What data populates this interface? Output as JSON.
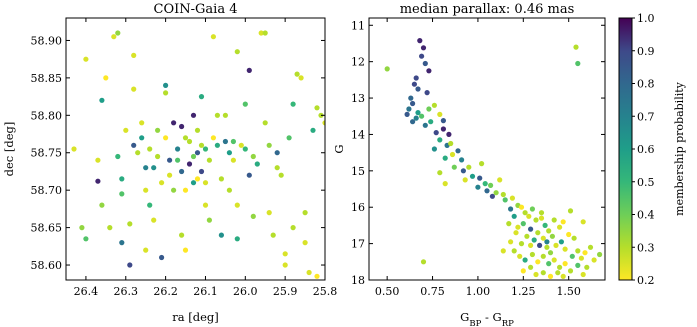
{
  "chart_data": [
    {
      "type": "scatter",
      "title": "COIN-Gaia 4",
      "xlabel": "ra [deg]",
      "ylabel": "dec [deg]",
      "xlim": [
        26.45,
        25.8
      ],
      "ylim": [
        58.58,
        58.93
      ],
      "x_inverted": true,
      "xticks": [
        26.4,
        26.3,
        26.2,
        26.1,
        26.0,
        25.9,
        25.8
      ],
      "xtick_labels": [
        "26.4",
        "26.3",
        "26.2",
        "26.1",
        "26.0",
        "25.9",
        "25.8"
      ],
      "yticks": [
        58.6,
        58.65,
        58.7,
        58.75,
        58.8,
        58.85,
        58.9
      ],
      "ytick_labels": [
        "58.60",
        "58.65",
        "58.70",
        "58.75",
        "58.80",
        "58.85",
        "58.90"
      ],
      "color_by": "membership probability",
      "points": [
        [
          26.43,
          58.755,
          0.25
        ],
        [
          26.41,
          58.65,
          0.35
        ],
        [
          26.4,
          58.635,
          0.45
        ],
        [
          26.4,
          58.875,
          0.25
        ],
        [
          26.37,
          58.712,
          0.95
        ],
        [
          26.37,
          58.74,
          0.25
        ],
        [
          26.36,
          58.82,
          0.6
        ],
        [
          26.36,
          58.68,
          0.35
        ],
        [
          26.35,
          58.85,
          0.2
        ],
        [
          26.34,
          58.65,
          0.3
        ],
        [
          26.33,
          58.905,
          0.25
        ],
        [
          26.32,
          58.91,
          0.35
        ],
        [
          26.32,
          58.745,
          0.5
        ],
        [
          26.31,
          58.715,
          0.55
        ],
        [
          26.31,
          58.695,
          0.45
        ],
        [
          26.31,
          58.63,
          0.75
        ],
        [
          26.3,
          58.78,
          0.25
        ],
        [
          26.29,
          58.655,
          0.3
        ],
        [
          26.29,
          58.6,
          0.9
        ],
        [
          26.28,
          58.88,
          0.25
        ],
        [
          26.28,
          58.835,
          0.25
        ],
        [
          26.28,
          58.76,
          0.85
        ],
        [
          26.27,
          58.75,
          0.3
        ],
        [
          26.26,
          58.77,
          0.6
        ],
        [
          26.26,
          58.79,
          0.25
        ],
        [
          26.25,
          58.62,
          0.25
        ],
        [
          26.25,
          58.73,
          0.7
        ],
        [
          26.25,
          58.7,
          0.25
        ],
        [
          26.24,
          58.755,
          0.3
        ],
        [
          26.24,
          58.68,
          0.5
        ],
        [
          26.23,
          58.73,
          0.65
        ],
        [
          26.23,
          58.66,
          0.25
        ],
        [
          26.22,
          58.78,
          0.35
        ],
        [
          26.22,
          58.745,
          0.3
        ],
        [
          26.21,
          58.61,
          0.85
        ],
        [
          26.21,
          58.71,
          0.25
        ],
        [
          26.2,
          58.77,
          0.2
        ],
        [
          26.2,
          58.84,
          0.65
        ],
        [
          26.2,
          58.83,
          0.3
        ],
        [
          26.19,
          58.74,
          0.85
        ],
        [
          26.19,
          58.72,
          0.25
        ],
        [
          26.18,
          58.79,
          0.95
        ],
        [
          26.18,
          58.7,
          0.35
        ],
        [
          26.17,
          58.755,
          0.7
        ],
        [
          26.17,
          58.74,
          0.45
        ],
        [
          26.16,
          58.785,
          0.95
        ],
        [
          26.16,
          58.725,
          0.8
        ],
        [
          26.16,
          58.64,
          0.3
        ],
        [
          26.15,
          58.77,
          0.3
        ],
        [
          26.15,
          58.7,
          0.2
        ],
        [
          26.15,
          58.62,
          0.2
        ],
        [
          26.14,
          58.735,
          0.95
        ],
        [
          26.14,
          58.765,
          0.3
        ],
        [
          26.13,
          58.8,
          0.95
        ],
        [
          26.13,
          58.745,
          0.4
        ],
        [
          26.13,
          58.71,
          0.6
        ],
        [
          26.12,
          58.78,
          0.3
        ],
        [
          26.12,
          58.75,
          0.85
        ],
        [
          26.12,
          58.715,
          0.2
        ],
        [
          26.11,
          58.76,
          0.3
        ],
        [
          26.11,
          58.825,
          0.55
        ],
        [
          26.11,
          58.725,
          0.9
        ],
        [
          26.1,
          58.755,
          0.5
        ],
        [
          26.1,
          58.71,
          0.25
        ],
        [
          26.1,
          58.68,
          0.25
        ],
        [
          26.09,
          58.66,
          0.35
        ],
        [
          26.09,
          58.74,
          0.3
        ],
        [
          26.08,
          58.905,
          0.25
        ],
        [
          26.08,
          58.77,
          0.2
        ],
        [
          26.07,
          58.76,
          0.55
        ],
        [
          26.07,
          58.8,
          0.3
        ],
        [
          26.06,
          58.715,
          0.3
        ],
        [
          26.06,
          58.64,
          0.65
        ],
        [
          26.05,
          58.8,
          0.3
        ],
        [
          26.05,
          58.765,
          0.75
        ],
        [
          26.04,
          58.7,
          0.3
        ],
        [
          26.04,
          58.75,
          0.6
        ],
        [
          26.03,
          58.765,
          0.45
        ],
        [
          26.03,
          58.74,
          0.25
        ],
        [
          26.02,
          58.885,
          0.3
        ],
        [
          26.02,
          58.68,
          0.25
        ],
        [
          26.02,
          58.635,
          0.55
        ],
        [
          26.01,
          58.76,
          0.25
        ],
        [
          26.0,
          58.815,
          0.45
        ],
        [
          26.0,
          58.755,
          0.5
        ],
        [
          25.99,
          58.86,
          0.95
        ],
        [
          25.99,
          58.72,
          0.85
        ],
        [
          25.98,
          58.745,
          0.35
        ],
        [
          25.98,
          58.665,
          0.35
        ],
        [
          25.97,
          58.735,
          0.55
        ],
        [
          25.96,
          58.91,
          0.25
        ],
        [
          25.95,
          58.91,
          0.3
        ],
        [
          25.95,
          58.79,
          0.3
        ],
        [
          25.94,
          58.76,
          0.35
        ],
        [
          25.94,
          58.67,
          0.25
        ],
        [
          25.93,
          58.64,
          0.3
        ],
        [
          25.92,
          58.75,
          0.8
        ],
        [
          25.92,
          58.73,
          0.3
        ],
        [
          25.91,
          58.72,
          0.3
        ],
        [
          25.9,
          58.615,
          0.25
        ],
        [
          25.9,
          58.6,
          0.25
        ],
        [
          25.89,
          58.77,
          0.45
        ],
        [
          25.88,
          58.815,
          0.5
        ],
        [
          25.88,
          58.65,
          0.3
        ],
        [
          25.87,
          58.855,
          0.3
        ],
        [
          25.86,
          58.85,
          0.25
        ],
        [
          25.85,
          58.67,
          0.3
        ],
        [
          25.85,
          58.63,
          0.25
        ],
        [
          25.84,
          58.59,
          0.25
        ],
        [
          25.83,
          58.78,
          0.55
        ],
        [
          25.82,
          58.81,
          0.3
        ],
        [
          25.81,
          58.8,
          0.3
        ],
        [
          25.82,
          58.585,
          0.2
        ],
        [
          25.8,
          58.79,
          0.25
        ]
      ]
    },
    {
      "type": "scatter",
      "title": "median parallax: 0.46 mas",
      "xlabel": "G",
      "xlabel_sub1": "BP",
      "xlabel_mid": " - G",
      "xlabel_sub2": "RP",
      "ylabel": "G",
      "xlim": [
        0.4,
        1.7
      ],
      "ylim": [
        18.0,
        10.8
      ],
      "y_inverted": true,
      "xticks": [
        0.5,
        0.75,
        1.0,
        1.25,
        1.5
      ],
      "xtick_labels": [
        "0.50",
        "0.75",
        "1.00",
        "1.25",
        "1.50"
      ],
      "yticks": [
        11,
        12,
        13,
        14,
        15,
        16,
        17,
        18
      ],
      "ytick_labels": [
        "11",
        "12",
        "13",
        "14",
        "15",
        "16",
        "17",
        "18"
      ],
      "color_by": "membership probability",
      "points": [
        [
          0.68,
          11.42,
          0.95
        ],
        [
          0.7,
          11.62,
          0.95
        ],
        [
          0.69,
          11.85,
          0.9
        ],
        [
          0.71,
          12.05,
          0.85
        ],
        [
          0.73,
          12.25,
          0.95
        ],
        [
          0.66,
          12.45,
          0.9
        ],
        [
          0.65,
          12.62,
          0.9
        ],
        [
          0.67,
          12.75,
          0.85
        ],
        [
          0.72,
          12.85,
          0.9
        ],
        [
          0.5,
          12.2,
          0.35
        ],
        [
          0.63,
          13.0,
          0.8
        ],
        [
          0.64,
          13.15,
          0.85
        ],
        [
          0.62,
          13.3,
          0.75
        ],
        [
          0.61,
          13.45,
          0.85
        ],
        [
          0.67,
          13.4,
          0.6
        ],
        [
          0.66,
          13.55,
          0.7
        ],
        [
          0.64,
          13.65,
          0.8
        ],
        [
          0.69,
          13.5,
          0.45
        ],
        [
          0.73,
          13.3,
          0.4
        ],
        [
          0.76,
          13.2,
          0.3
        ],
        [
          0.71,
          13.75,
          0.75
        ],
        [
          0.74,
          13.65,
          0.55
        ],
        [
          0.79,
          13.45,
          0.25
        ],
        [
          0.81,
          13.62,
          0.85
        ],
        [
          0.77,
          13.95,
          0.9
        ],
        [
          0.81,
          13.85,
          0.95
        ],
        [
          0.84,
          14.0,
          0.95
        ],
        [
          0.79,
          14.15,
          0.55
        ],
        [
          0.83,
          14.3,
          0.75
        ],
        [
          0.76,
          14.4,
          0.65
        ],
        [
          0.85,
          14.25,
          0.3
        ],
        [
          0.89,
          14.45,
          0.8
        ],
        [
          0.86,
          14.55,
          0.25
        ],
        [
          0.91,
          14.7,
          0.7
        ],
        [
          0.82,
          14.65,
          0.55
        ],
        [
          0.87,
          14.9,
          0.4
        ],
        [
          0.92,
          15.0,
          0.85
        ],
        [
          0.95,
          14.9,
          0.3
        ],
        [
          0.97,
          15.15,
          0.6
        ],
        [
          0.93,
          15.25,
          0.25
        ],
        [
          0.79,
          15.05,
          0.3
        ],
        [
          0.82,
          15.35,
          0.25
        ],
        [
          1.01,
          15.2,
          0.85
        ],
        [
          1.04,
          15.35,
          0.5
        ],
        [
          1.0,
          15.45,
          0.7
        ],
        [
          1.07,
          15.4,
          0.4
        ],
        [
          1.05,
          15.55,
          0.8
        ],
        [
          1.1,
          15.6,
          0.35
        ],
        [
          1.02,
          14.8,
          0.3
        ],
        [
          1.12,
          15.25,
          0.25
        ],
        [
          1.08,
          15.7,
          0.9
        ],
        [
          1.14,
          15.65,
          0.3
        ],
        [
          1.15,
          15.8,
          0.45
        ],
        [
          1.19,
          15.75,
          0.25
        ],
        [
          1.22,
          15.95,
          0.35
        ],
        [
          1.18,
          16.05,
          0.75
        ],
        [
          1.24,
          16.0,
          0.2
        ],
        [
          1.26,
          16.15,
          0.3
        ],
        [
          1.2,
          16.25,
          0.6
        ],
        [
          1.28,
          16.25,
          0.25
        ],
        [
          1.3,
          16.05,
          0.4
        ],
        [
          1.32,
          16.35,
          0.3
        ],
        [
          1.25,
          16.45,
          0.45
        ],
        [
          1.35,
          16.3,
          0.25
        ],
        [
          1.37,
          16.5,
          0.5
        ],
        [
          1.22,
          16.55,
          0.25
        ],
        [
          1.29,
          16.6,
          0.85
        ],
        [
          1.33,
          16.7,
          0.3
        ],
        [
          1.39,
          16.65,
          0.3
        ],
        [
          1.27,
          16.8,
          0.3
        ],
        [
          1.31,
          16.9,
          0.55
        ],
        [
          1.36,
          16.85,
          0.25
        ],
        [
          1.41,
          16.8,
          0.35
        ],
        [
          1.24,
          17.0,
          0.3
        ],
        [
          1.29,
          17.05,
          0.25
        ],
        [
          1.34,
          17.05,
          0.9
        ],
        [
          1.38,
          17.1,
          0.3
        ],
        [
          1.43,
          17.05,
          0.25
        ],
        [
          1.46,
          16.95,
          0.6
        ],
        [
          1.48,
          17.15,
          0.25
        ],
        [
          1.5,
          16.75,
          0.2
        ],
        [
          1.53,
          16.85,
          0.3
        ],
        [
          1.55,
          17.2,
          0.3
        ],
        [
          1.52,
          17.35,
          0.45
        ],
        [
          1.57,
          17.4,
          0.25
        ],
        [
          1.59,
          17.25,
          0.2
        ],
        [
          1.62,
          17.1,
          0.3
        ],
        [
          1.64,
          17.45,
          0.25
        ],
        [
          1.67,
          17.3,
          0.35
        ],
        [
          1.6,
          17.65,
          0.3
        ],
        [
          1.2,
          17.2,
          0.3
        ],
        [
          1.23,
          17.35,
          0.25
        ],
        [
          1.26,
          17.45,
          0.55
        ],
        [
          1.3,
          17.3,
          0.3
        ],
        [
          1.33,
          17.5,
          0.2
        ],
        [
          1.36,
          17.35,
          0.3
        ],
        [
          1.39,
          17.55,
          0.45
        ],
        [
          1.42,
          17.45,
          0.25
        ],
        [
          1.45,
          17.65,
          0.3
        ],
        [
          1.48,
          17.55,
          0.2
        ],
        [
          1.51,
          17.75,
          0.3
        ],
        [
          1.55,
          17.6,
          0.45
        ],
        [
          1.58,
          17.85,
          0.25
        ],
        [
          1.25,
          17.75,
          0.2
        ],
        [
          1.29,
          17.65,
          0.3
        ],
        [
          1.32,
          17.85,
          0.25
        ],
        [
          1.36,
          17.8,
          0.3
        ],
        [
          1.4,
          17.9,
          0.2
        ],
        [
          1.44,
          17.8,
          0.3
        ],
        [
          1.47,
          17.9,
          0.25
        ],
        [
          1.17,
          16.45,
          0.3
        ],
        [
          1.21,
          16.7,
          0.25
        ],
        [
          1.14,
          17.2,
          0.25
        ],
        [
          1.35,
          16.15,
          0.3
        ],
        [
          1.38,
          16.95,
          0.7
        ],
        [
          1.42,
          16.35,
          0.3
        ],
        [
          1.45,
          16.55,
          0.25
        ],
        [
          1.47,
          16.4,
          0.2
        ],
        [
          1.51,
          16.1,
          0.3
        ],
        [
          1.58,
          16.4,
          0.25
        ],
        [
          1.54,
          11.6,
          0.3
        ],
        [
          1.55,
          12.05,
          0.45
        ],
        [
          0.7,
          17.5,
          0.3
        ],
        [
          1.18,
          16.95,
          0.25
        ],
        [
          1.4,
          17.25,
          0.35
        ]
      ]
    }
  ],
  "colorbar": {
    "label": "membership probability",
    "min": 0.2,
    "max": 1.0,
    "ticks": [
      0.2,
      0.3,
      0.4,
      0.5,
      0.6,
      0.7,
      0.8,
      0.9,
      1.0
    ],
    "tick_labels": [
      "0.2",
      "0.3",
      "0.4",
      "0.5",
      "0.6",
      "0.7",
      "0.8",
      "0.9",
      "1.0"
    ],
    "colormap": "viridis_r"
  }
}
